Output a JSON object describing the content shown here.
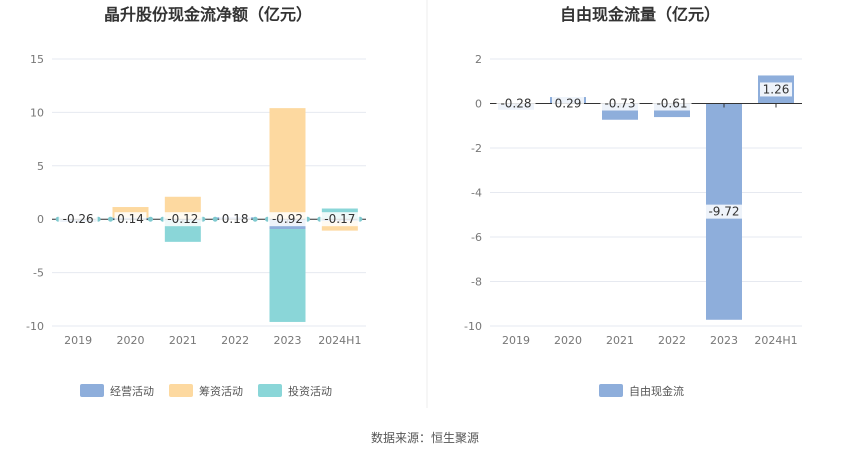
{
  "source_text": "数据来源：恒生聚源",
  "chart_data": [
    {
      "type": "bar",
      "stacked": true,
      "title": "晶升股份现金流净额（亿元）",
      "categories": [
        "2019",
        "2020",
        "2021",
        "2022",
        "2023",
        "2024H1"
      ],
      "ylim": [
        -10,
        15
      ],
      "yticks": [
        -10,
        -5,
        0,
        5,
        10,
        15
      ],
      "grid": true,
      "legend_position": "bottom",
      "series": [
        {
          "name": "经营活动",
          "color": "#8eaedb",
          "values": [
            -0.26,
            0.14,
            -0.12,
            0.18,
            -0.92,
            -0.17
          ]
        },
        {
          "name": "筹资活动",
          "color": "#fdd9a0",
          "values": [
            0.0,
            1.0,
            2.1,
            0.0,
            10.4,
            -0.9
          ]
        },
        {
          "name": "投资活动",
          "color": "#8ad6d8",
          "values": [
            0.0,
            -0.05,
            -2.0,
            0.0,
            -8.7,
            1.0
          ]
        }
      ],
      "labels": [
        "-0.26",
        "0.14",
        "-0.12",
        "0.18",
        "-0.92",
        "-0.17"
      ]
    },
    {
      "type": "bar",
      "title": "自由现金流量（亿元）",
      "categories": [
        "2019",
        "2020",
        "2021",
        "2022",
        "2023",
        "2024H1"
      ],
      "ylim": [
        -10,
        2
      ],
      "yticks": [
        -10,
        -8,
        -6,
        -4,
        -2,
        0,
        2
      ],
      "grid": true,
      "legend_position": "bottom",
      "series": [
        {
          "name": "自由现金流",
          "color": "#8eaedb",
          "values": [
            -0.28,
            0.29,
            -0.73,
            -0.61,
            -9.72,
            1.26
          ]
        }
      ],
      "labels": [
        "-0.28",
        "0.29",
        "-0.73",
        "-0.61",
        "-9.72",
        "1.26"
      ]
    }
  ]
}
